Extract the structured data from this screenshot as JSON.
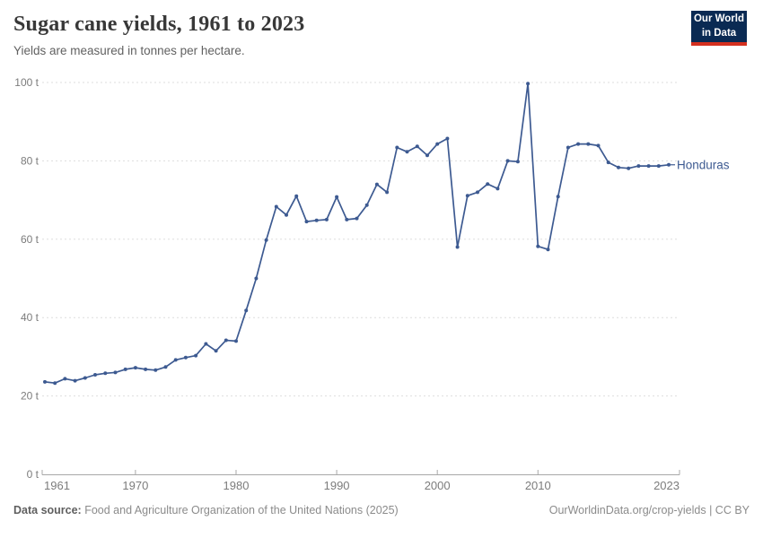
{
  "header": {
    "title": "Sugar cane yields, 1961 to 2023",
    "subtitle": "Yields are measured in tonnes per hectare.",
    "logo_line1": "Our World",
    "logo_line2": "in Data"
  },
  "colors": {
    "line": "#3d5a91",
    "gridline": "#dedede",
    "axis": "#a8a8a8",
    "tick_label": "#7c7c7c",
    "brand_navy": "#0a2a53",
    "brand_red": "#d4301f"
  },
  "chart_data": {
    "type": "line",
    "title": "Sugar cane yields, 1961 to 2023",
    "ylabel": "tonnes per hectare",
    "unit": "t",
    "xlim": [
      1961,
      2023
    ],
    "ylim": [
      0,
      100
    ],
    "x_ticks": [
      1961,
      1970,
      1980,
      1990,
      2000,
      2010,
      2023
    ],
    "y_ticks": [
      0,
      20,
      40,
      60,
      80,
      100
    ],
    "y_tick_suffix": " t",
    "grid": "horizontal-dashed",
    "legend_position": "end-of-line",
    "series": [
      {
        "name": "Honduras",
        "color": "#3d5a91",
        "x": [
          1961,
          1962,
          1963,
          1964,
          1965,
          1966,
          1967,
          1968,
          1969,
          1970,
          1971,
          1972,
          1973,
          1974,
          1975,
          1976,
          1977,
          1978,
          1979,
          1980,
          1981,
          1982,
          1983,
          1984,
          1985,
          1986,
          1987,
          1988,
          1989,
          1990,
          1991,
          1992,
          1993,
          1994,
          1995,
          1996,
          1997,
          1998,
          1999,
          2000,
          2001,
          2002,
          2003,
          2004,
          2005,
          2006,
          2007,
          2008,
          2009,
          2010,
          2011,
          2012,
          2013,
          2014,
          2015,
          2016,
          2017,
          2018,
          2019,
          2020,
          2021,
          2022,
          2023
        ],
        "values": [
          23.6,
          23.3,
          24.4,
          23.9,
          24.6,
          25.4,
          25.8,
          26.0,
          26.8,
          27.2,
          26.8,
          26.6,
          27.4,
          29.2,
          29.8,
          30.3,
          33.3,
          31.5,
          34.2,
          34.0,
          41.8,
          50.0,
          59.8,
          68.3,
          66.2,
          71.0,
          64.5,
          64.8,
          65.0,
          70.8,
          65.0,
          65.3,
          68.7,
          74.0,
          72.0,
          83.4,
          82.3,
          83.7,
          81.4,
          84.3,
          85.7,
          58.0,
          71.1,
          72.0,
          74.1,
          72.9,
          80.0,
          79.8,
          99.7,
          58.2,
          57.4,
          70.9,
          83.4,
          84.3,
          84.3,
          83.9,
          79.6,
          78.3,
          78.1,
          78.7,
          78.7,
          78.7,
          79.0
        ]
      }
    ]
  },
  "footer": {
    "datasource_label": "Data source:",
    "datasource_text": " Food and Agriculture Organization of the United Nations (2025)",
    "link_text": "OurWorldinData.org/crop-yields",
    "separator": " | ",
    "license_text": "CC BY"
  }
}
